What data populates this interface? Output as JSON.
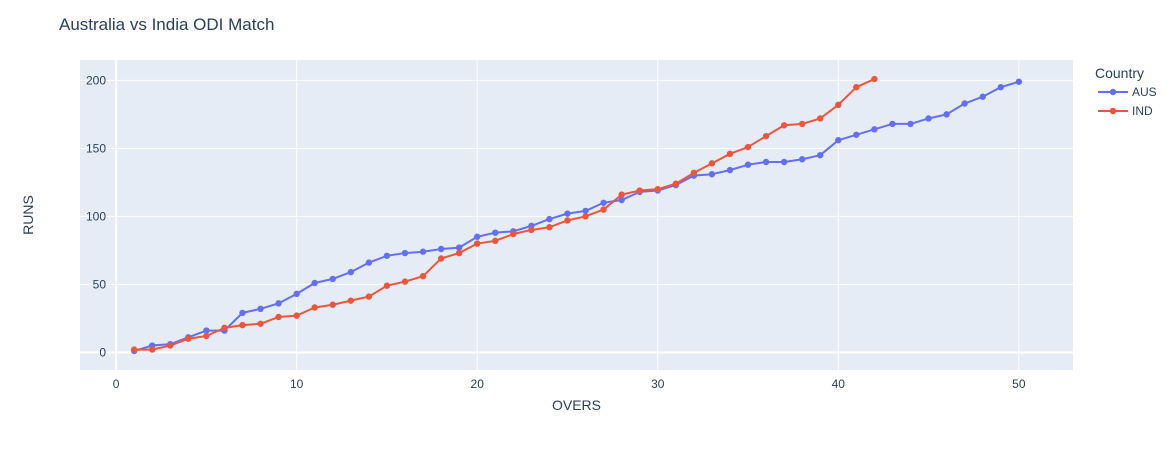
{
  "chart_data": {
    "type": "line",
    "title": "Australia vs India ODI Match",
    "xlabel": "OVERS",
    "ylabel": "RUNS",
    "xlim": [
      -2,
      53
    ],
    "ylim": [
      -13,
      215
    ],
    "xticks": [
      0,
      10,
      20,
      30,
      40,
      50
    ],
    "yticks": [
      0,
      50,
      100,
      150,
      200
    ],
    "grid": true,
    "legend": {
      "title": "Country",
      "position": "top-right"
    },
    "series": [
      {
        "name": "AUS",
        "color": "#636efa",
        "x": [
          1,
          2,
          3,
          4,
          5,
          6,
          7,
          8,
          9,
          10,
          11,
          12,
          13,
          14,
          15,
          16,
          17,
          18,
          19,
          20,
          21,
          22,
          23,
          24,
          25,
          26,
          27,
          28,
          29,
          30,
          31,
          32,
          33,
          34,
          35,
          36,
          37,
          38,
          39,
          40,
          41,
          42,
          43,
          44,
          45,
          46,
          47,
          48,
          49,
          50
        ],
        "y": [
          1,
          5,
          6,
          11,
          16,
          16,
          29,
          32,
          36,
          43,
          51,
          54,
          59,
          66,
          71,
          73,
          74,
          76,
          77,
          85,
          88,
          89,
          93,
          98,
          102,
          104,
          110,
          112,
          118,
          119,
          123,
          130,
          131,
          134,
          138,
          140,
          140,
          142,
          145,
          156,
          160,
          164,
          168,
          168,
          172,
          175,
          183,
          188,
          195,
          199
        ]
      },
      {
        "name": "IND",
        "color": "#ef553b",
        "x": [
          1,
          2,
          3,
          4,
          5,
          6,
          7,
          8,
          9,
          10,
          11,
          12,
          13,
          14,
          15,
          16,
          17,
          18,
          19,
          20,
          21,
          22,
          23,
          24,
          25,
          26,
          27,
          28,
          29,
          30,
          31,
          32,
          33,
          34,
          35,
          36,
          37,
          38,
          39,
          40,
          41,
          42
        ],
        "y": [
          2,
          2,
          5,
          10,
          12,
          18,
          20,
          21,
          26,
          27,
          33,
          35,
          38,
          41,
          49,
          52,
          56,
          69,
          73,
          80,
          82,
          87,
          90,
          92,
          97,
          100,
          105,
          116,
          119,
          120,
          124,
          132,
          139,
          146,
          151,
          159,
          167,
          168,
          172,
          182,
          195,
          201
        ]
      }
    ]
  }
}
